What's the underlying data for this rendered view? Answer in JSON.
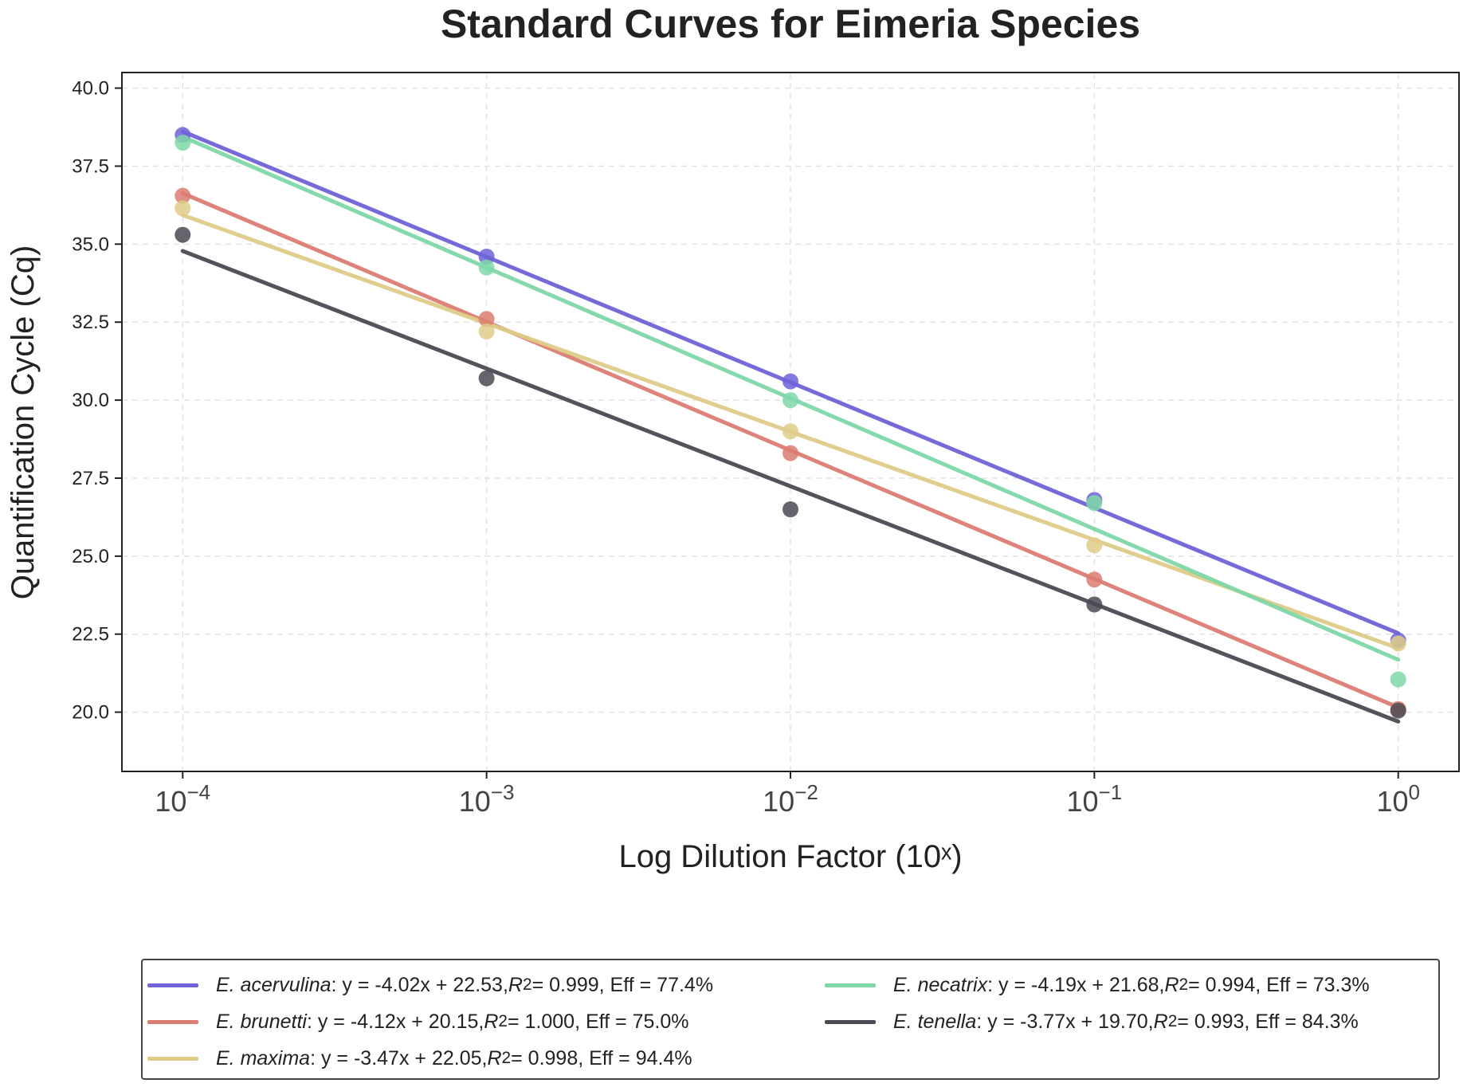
{
  "chart_data": {
    "type": "line",
    "title": "Standard Curves for Eimeria Species",
    "xlabel": "Log Dilution Factor (10ˣ)",
    "ylabel": "Quantification Cycle (Cq)",
    "x": [
      -4,
      -3,
      -2,
      -1,
      0
    ],
    "xticks": [
      {
        "base": "10",
        "exp": "−4"
      },
      {
        "base": "10",
        "exp": "−3"
      },
      {
        "base": "10",
        "exp": "−2"
      },
      {
        "base": "10",
        "exp": "−1"
      },
      {
        "base": "10",
        "exp": "0"
      }
    ],
    "ylim": [
      18.1,
      40.5
    ],
    "yticks": [
      "20.0",
      "22.5",
      "25.0",
      "27.5",
      "30.0",
      "32.5",
      "35.0",
      "37.5",
      "40.0"
    ],
    "grid": true,
    "legend_position": "bottom",
    "series": [
      {
        "name": "E. acervulina",
        "color": "#6f63d8",
        "values": [
          38.5,
          34.6,
          30.6,
          26.8,
          22.3
        ],
        "slope": -4.02,
        "intercept": 22.53,
        "equation": ": y = -4.02x + 22.53, ",
        "r2": " = 0.999, Eff = 77.4%"
      },
      {
        "name": "E. brunetti",
        "color": "#dc7d72",
        "values": [
          36.55,
          32.6,
          28.3,
          24.25,
          20.1
        ],
        "slope": -4.12,
        "intercept": 20.15,
        "equation": ": y = -4.12x + 20.15, ",
        "r2": " = 1.000, Eff = 75.0%"
      },
      {
        "name": "E. maxima",
        "color": "#dfcc88",
        "values": [
          36.15,
          32.2,
          29.0,
          25.35,
          22.2
        ],
        "slope": -3.47,
        "intercept": 22.05,
        "equation": ": y = -3.47x + 22.05, ",
        "r2": " = 0.998, Eff = 94.4%"
      },
      {
        "name": "E. necatrix",
        "color": "#7fd8a8",
        "values": [
          38.25,
          34.25,
          30.0,
          26.7,
          21.05
        ],
        "slope": -4.19,
        "intercept": 21.68,
        "equation": ": y = -4.19x + 21.68, ",
        "r2": " = 0.994, Eff = 73.3%"
      },
      {
        "name": "E. tenella",
        "color": "#4a4a54",
        "values": [
          35.3,
          30.7,
          26.5,
          23.45,
          20.05
        ],
        "slope": -3.77,
        "intercept": 19.7,
        "equation": ": y = -3.77x + 19.70, ",
        "r2": " = 0.993, Eff = 84.3%"
      }
    ],
    "r2_label": "R",
    "r2_exp": "2"
  }
}
